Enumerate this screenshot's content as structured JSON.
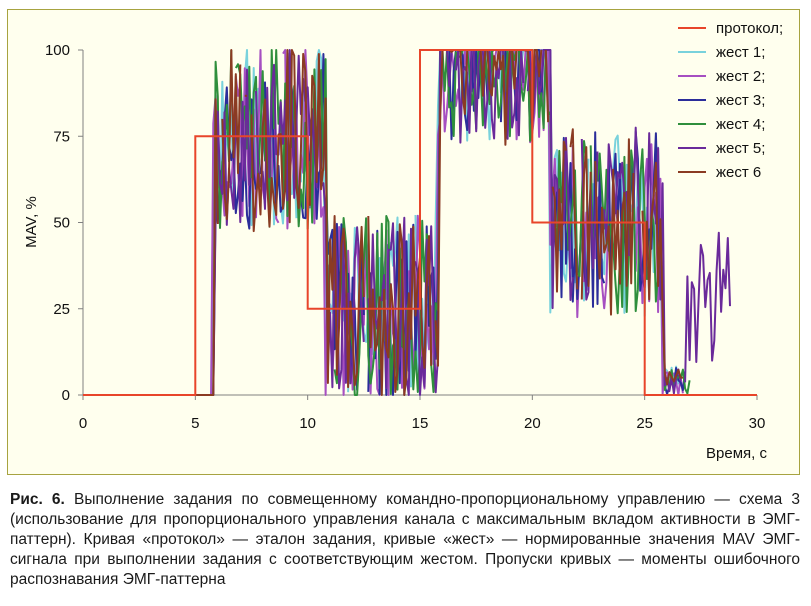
{
  "chart_data": {
    "type": "line",
    "xlabel": "Время, с",
    "ylabel": "MAV, %",
    "xlim": [
      0,
      30
    ],
    "ylim": [
      0,
      100
    ],
    "x_ticks": [
      0,
      5,
      10,
      15,
      20,
      25,
      30
    ],
    "y_ticks": [
      0,
      25,
      50,
      75,
      100
    ],
    "grid": false,
    "legend_position": "top-right",
    "series": [
      {
        "name": "протокол;",
        "color": "#e8452a",
        "x": [
          0,
          5,
          5,
          10,
          10,
          15,
          15,
          20,
          20,
          25,
          25,
          30
        ],
        "y": [
          0,
          0,
          75,
          75,
          25,
          25,
          100,
          100,
          50,
          50,
          0,
          0
        ]
      },
      {
        "name": "жест 1;",
        "color": "#79d2dc",
        "seed": 11
      },
      {
        "name": "жест 2;",
        "color": "#a64fc1",
        "seed": 23
      },
      {
        "name": "жест 3;",
        "color": "#2b2d9a",
        "seed": 37
      },
      {
        "name": "жест 4;",
        "color": "#2f8f3c",
        "seed": 41
      },
      {
        "name": "жест 5;",
        "color": "#6a2a9a",
        "seed": 53
      },
      {
        "name": "жест 6",
        "color": "#8b3b22",
        "seed": 67
      }
    ]
  },
  "caption": {
    "label": "Рис. 6.",
    "text": "Выполнение задания по совмещенному командно-пропорциональному управлению — схема 3 (использование для пропорционального управления канала с максимальным вкладом активности в ЭМГ-паттерн). Кривая «протокол» — эталон задания, кривые «жест» — нормированные значения MAV ЭМГ-сигнала при выполнении задания с соответствующим жестом. Пропуски кривых — моменты ошибочного распознавания ЭМГ-паттерна"
  }
}
